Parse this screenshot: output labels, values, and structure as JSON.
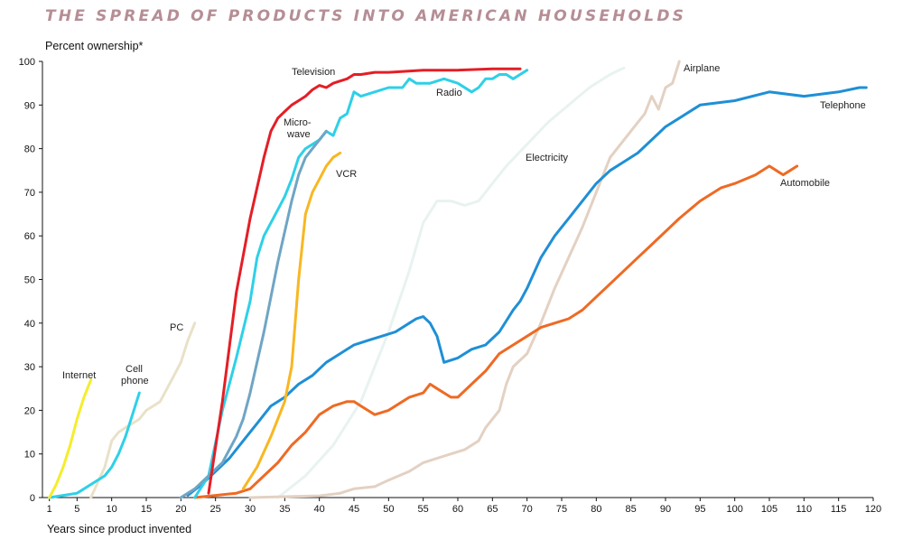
{
  "chart_data": {
    "type": "line",
    "title": "THE SPREAD OF PRODUCTS INTO AMERICAN HOUSEHOLDS",
    "ylabel": "Percent ownership*",
    "xlabel": "Years since product invented",
    "xlim": [
      0,
      120
    ],
    "ylim": [
      0,
      100
    ],
    "xticks": [
      1,
      5,
      10,
      15,
      20,
      25,
      30,
      35,
      40,
      45,
      50,
      55,
      60,
      65,
      70,
      75,
      80,
      85,
      90,
      95,
      100,
      105,
      110,
      115,
      120
    ],
    "yticks": [
      0,
      10,
      20,
      30,
      40,
      50,
      60,
      70,
      80,
      90,
      100
    ],
    "grid": false,
    "legend": "none",
    "series": [
      {
        "name": "Electricity",
        "color": "#e8f3f1",
        "x": [
          34,
          38,
          42,
          46,
          50,
          53,
          55,
          57,
          59,
          61,
          63,
          65,
          67,
          70,
          73,
          76,
          79,
          82,
          84
        ],
        "y": [
          0,
          5,
          12,
          22,
          38,
          52,
          63,
          68,
          68,
          67,
          68,
          72,
          76,
          81,
          86,
          90,
          94,
          97,
          98.5
        ]
      },
      {
        "name": "PC",
        "color": "#e9e1c8",
        "x": [
          7,
          9,
          10,
          11,
          12,
          13,
          14,
          15,
          16,
          17,
          18,
          19,
          20,
          21,
          22
        ],
        "y": [
          0,
          7,
          13,
          15,
          16,
          17,
          18,
          20,
          21,
          22,
          25,
          28,
          31,
          36,
          40
        ]
      },
      {
        "name": "Airplane",
        "color": "#e3d1c2",
        "x": [
          30,
          35,
          40,
          43,
          45,
          48,
          50,
          53,
          55,
          57,
          59,
          61,
          63,
          64,
          66,
          67,
          68,
          70,
          72,
          74,
          76,
          78,
          80,
          82,
          84,
          86,
          87,
          88,
          89,
          90,
          91,
          92
        ],
        "y": [
          0,
          0.2,
          0.4,
          1,
          2,
          2.5,
          4,
          6,
          8,
          9,
          10,
          11,
          13,
          16,
          20,
          26,
          30,
          33,
          40,
          48,
          55,
          62,
          70,
          78,
          82,
          86,
          88,
          92,
          89,
          94,
          95,
          100
        ]
      },
      {
        "name": "Telephone",
        "color": "#1f8fd6",
        "x": [
          21,
          23,
          25,
          27,
          29,
          31,
          33,
          35,
          37,
          39,
          41,
          43,
          45,
          47,
          49,
          51,
          53,
          54,
          55,
          56,
          57,
          58,
          60,
          62,
          64,
          66,
          68,
          69,
          70,
          72,
          74,
          76,
          78,
          80,
          82,
          84,
          86,
          88,
          90,
          92,
          95,
          100,
          105,
          110,
          115,
          118,
          119
        ],
        "y": [
          0.5,
          3,
          6,
          9,
          13,
          17,
          21,
          23,
          26,
          28,
          31,
          33,
          35,
          36,
          37,
          38,
          40,
          41,
          41.5,
          40,
          37,
          31,
          32,
          34,
          35,
          38,
          43,
          45,
          48,
          55,
          60,
          64,
          68,
          72,
          75,
          77,
          79,
          82,
          85,
          87,
          90,
          91,
          93,
          92,
          93,
          94,
          94
        ]
      },
      {
        "name": "Automobile",
        "color": "#ee6a24",
        "x": [
          22,
          25,
          28,
          30,
          32,
          34,
          36,
          38,
          40,
          42,
          44,
          45,
          46,
          47,
          48,
          50,
          52,
          53,
          55,
          56,
          57,
          58,
          59,
          60,
          62,
          64,
          66,
          68,
          70,
          72,
          74,
          76,
          78,
          80,
          82,
          84,
          86,
          88,
          90,
          92,
          95,
          98,
          100,
          103,
          105,
          106,
          107,
          108,
          109
        ],
        "y": [
          0,
          0.5,
          1,
          2,
          5,
          8,
          12,
          15,
          19,
          21,
          22,
          22,
          21,
          20,
          19,
          20,
          22,
          23,
          24,
          26,
          25,
          24,
          23,
          23,
          26,
          29,
          33,
          35,
          37,
          39,
          40,
          41,
          43,
          46,
          49,
          52,
          55,
          58,
          61,
          64,
          68,
          71,
          72,
          74,
          76,
          75,
          74,
          75,
          76
        ]
      },
      {
        "name": "Cell phone",
        "color": "#2ed0e8",
        "x": [
          1,
          3,
          5,
          7,
          9,
          10,
          11,
          12,
          13,
          14
        ],
        "y": [
          0,
          0.5,
          1,
          3,
          5,
          7,
          10,
          14,
          19,
          24
        ]
      },
      {
        "name": "Radio",
        "color": "#2ed0e8",
        "x": [
          22,
          24,
          26,
          28,
          30,
          31,
          32,
          33,
          34,
          35,
          36,
          37,
          38,
          39,
          40,
          41,
          42,
          43,
          44,
          45,
          46,
          48,
          50,
          52,
          53,
          54,
          56,
          58,
          60,
          62,
          63,
          64,
          65,
          66,
          67,
          68,
          69,
          70
        ],
        "y": [
          0,
          5,
          20,
          32,
          45,
          55,
          60,
          63,
          66,
          69,
          73,
          78,
          80,
          81,
          82,
          84,
          83,
          87,
          88,
          93,
          92,
          93,
          94,
          94,
          96,
          95,
          95,
          96,
          95,
          93,
          94,
          96,
          96,
          97,
          97,
          96,
          97,
          98
        ]
      },
      {
        "name": "Micro-wave",
        "color": "#6fa5c4",
        "x": [
          20,
          22,
          24,
          26,
          28,
          29,
          30,
          32,
          34,
          36,
          37,
          38,
          40,
          41
        ],
        "y": [
          0,
          2,
          5,
          8,
          14,
          18,
          24,
          38,
          54,
          68,
          74,
          78,
          82,
          84
        ]
      },
      {
        "name": "VCR",
        "color": "#f8b722",
        "x": [
          29,
          31,
          33,
          35,
          36,
          37,
          38,
          39,
          40,
          41,
          42,
          43
        ],
        "y": [
          2,
          7,
          14,
          22,
          30,
          50,
          65,
          70,
          73,
          76,
          78,
          79
        ]
      },
      {
        "name": "Television",
        "color": "#e41e26",
        "x": [
          24,
          26,
          28,
          30,
          32,
          33,
          34,
          35,
          36,
          37,
          38,
          39,
          40,
          41,
          42,
          43,
          44,
          45,
          46,
          48,
          50,
          55,
          60,
          65,
          69
        ],
        "y": [
          1,
          22,
          47,
          64,
          78,
          84,
          87,
          88.5,
          90,
          91,
          92,
          93.5,
          94.5,
          94,
          95,
          95.5,
          96,
          97,
          97,
          97.5,
          97.5,
          98,
          98,
          98.3,
          98.3
        ]
      },
      {
        "name": "Internet",
        "color": "#f4ed2c",
        "x": [
          1,
          2,
          3,
          4,
          5,
          6,
          7
        ],
        "y": [
          0,
          3,
          7,
          12,
          18,
          23,
          27
        ]
      }
    ]
  },
  "colors": {
    "title": "#b58e95",
    "axis": "#111111"
  }
}
